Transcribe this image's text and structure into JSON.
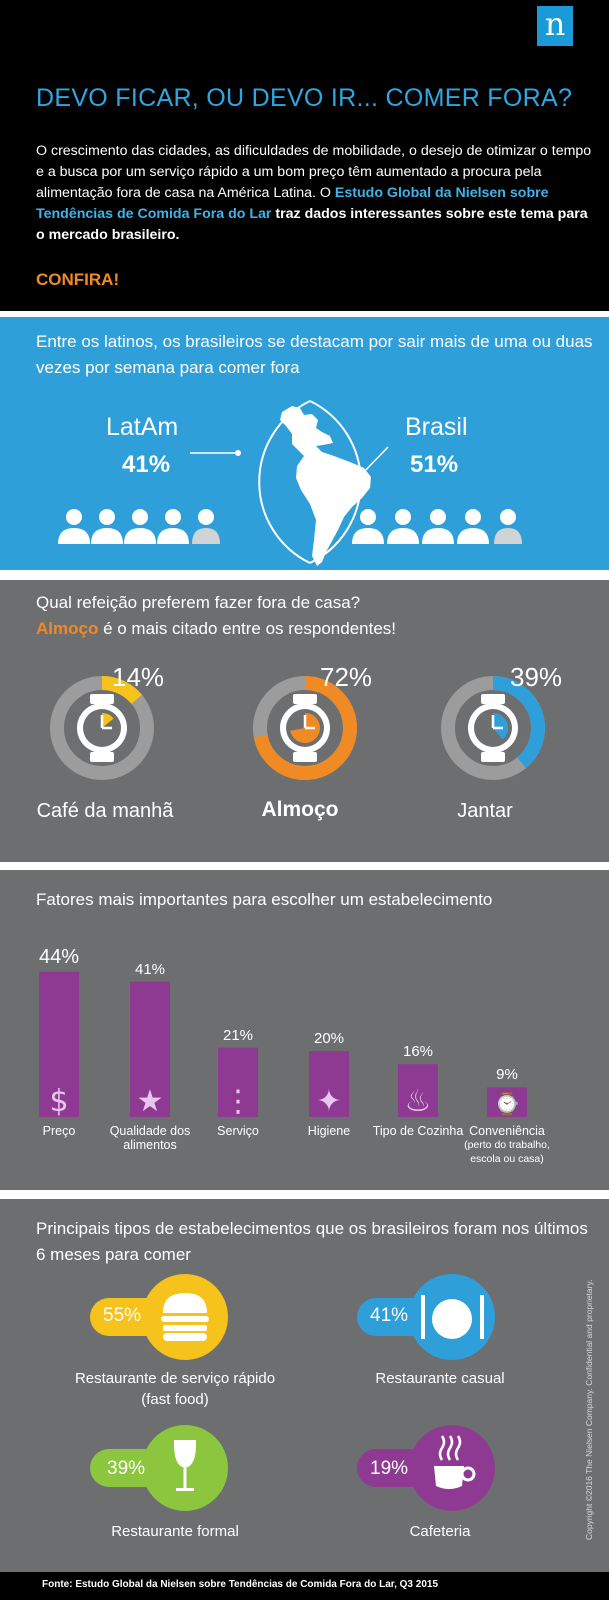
{
  "logo": "n",
  "header": {
    "title": "DEVO FICAR, OU DEVO IR... COMER FORA?",
    "intro_plain": "O crescimento das cidades, as dificuldades de mobilidade, o desejo de otimizar o tempo e a busca por um serviço rápido a um bom preço têm aumentado a procura pela alimentação fora de casa na América Latina. O ",
    "intro_highlight": "Estudo Global da Nielsen sobre Tendências de Comida Fora do Lar",
    "intro_bold": " traz dados interessantes sobre este tema para o mercado brasileiro.",
    "cta": "CONFIRA!"
  },
  "frequency": {
    "question": "Entre os latinos, os brasileiros se destacam por sair mais de uma ou duas vezes por semana para comer fora",
    "latam": {
      "label": "LatAm",
      "value": "41%"
    },
    "brasil": {
      "label": "Brasil",
      "value": "51%"
    }
  },
  "meals": {
    "question": "Qual refeição preferem fazer fora de casa?",
    "highlight_word": "Almoço",
    "highlight_rest": " é o mais citado entre os respondentes!",
    "colors": [
      "#f6c21c",
      "#f08a24",
      "#2f9fda"
    ],
    "items": [
      {
        "label": "Café da manhã",
        "value": "14%"
      },
      {
        "label": "Almoço",
        "value": "72%"
      },
      {
        "label": "Jantar",
        "value": "39%"
      }
    ]
  },
  "factors": {
    "title": "Fatores mais importantes para escolher um estabelecimento",
    "color": "#8e3a92",
    "items": [
      {
        "label": "Preço",
        "sub": "",
        "value": "44%",
        "icon": "dollar-icon"
      },
      {
        "label": "Qualidade dos alimentos",
        "sub": "",
        "value": "41%",
        "icon": "award-ribbon-icon"
      },
      {
        "label": "Serviço",
        "sub": "",
        "value": "21%",
        "icon": "waiter-icon"
      },
      {
        "label": "Higiene",
        "sub": "",
        "value": "20%",
        "icon": "sparkle-icon"
      },
      {
        "label": "Tipo de Cozinha",
        "sub": "",
        "value": "16%",
        "icon": "chef-hat-icon"
      },
      {
        "label": "Conveniência",
        "sub": "(perto do trabalho, escola ou casa)",
        "value": "9%",
        "icon": "watch-icon"
      }
    ]
  },
  "places": {
    "title": "Principais tipos de estabelecimentos que os brasileiros foram nos últimos 6 meses para comer",
    "items": [
      {
        "label": "Restaurante de serviço rápido (fast food)",
        "value": "55%",
        "color": "#f6c21c",
        "icon": "burger-icon"
      },
      {
        "label": "Restaurante casual",
        "value": "41%",
        "color": "#2f9fda",
        "icon": "plate-cutlery-icon"
      },
      {
        "label": "Restaurante formal",
        "value": "39%",
        "color": "#8cc63f",
        "icon": "wine-glass-icon"
      },
      {
        "label": "Cafeteria",
        "value": "19%",
        "color": "#8e3a92",
        "icon": "coffee-cup-icon"
      }
    ]
  },
  "copyright": "Copyright ©2016 The Nielsen Company. Confidential and proprietary.",
  "source": "Fonte: Estudo Global da Nielsen sobre Tendências de Comida Fora do Lar, Q3 2015",
  "chart_data": [
    {
      "type": "pie",
      "title": "Qual refeição preferem fazer fora de casa?",
      "categories": [
        "Café da manhã",
        "Almoço",
        "Jantar"
      ],
      "values": [
        14,
        72,
        39
      ]
    },
    {
      "type": "bar",
      "title": "Fatores mais importantes para escolher um estabelecimento",
      "categories": [
        "Preço",
        "Qualidade dos alimentos",
        "Serviço",
        "Higiene",
        "Tipo de Cozinha",
        "Conveniência"
      ],
      "values": [
        44,
        41,
        21,
        20,
        16,
        9
      ]
    },
    {
      "type": "bar",
      "title": "Principais tipos de estabelecimentos que os brasileiros foram nos últimos 6 meses para comer",
      "categories": [
        "Restaurante de serviço rápido (fast food)",
        "Restaurante casual",
        "Restaurante formal",
        "Cafeteria"
      ],
      "values": [
        55,
        41,
        39,
        19
      ]
    },
    {
      "type": "bar",
      "title": "Entre os latinos, os brasileiros se destacam por sair mais de uma ou duas vezes por semana para comer fora",
      "categories": [
        "LatAm",
        "Brasil"
      ],
      "values": [
        41,
        51
      ]
    }
  ]
}
